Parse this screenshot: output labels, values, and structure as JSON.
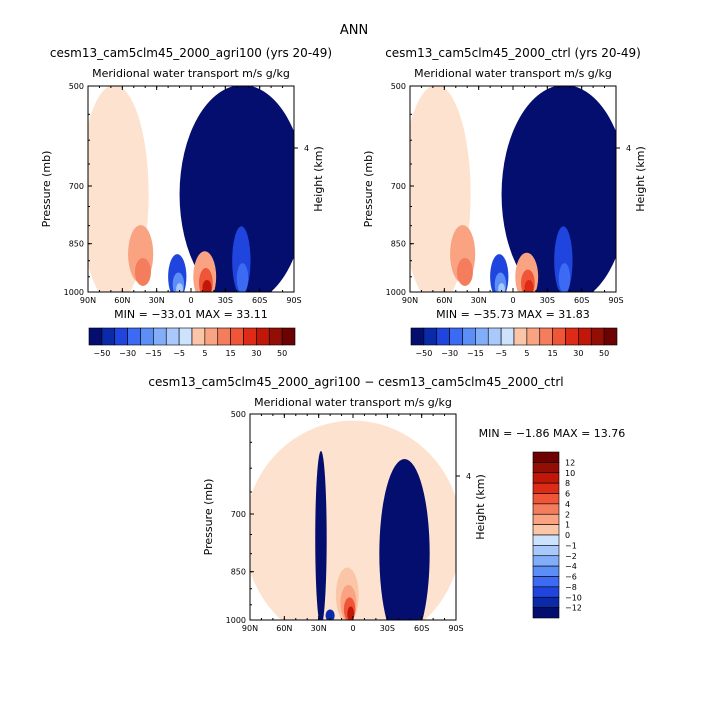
{
  "title": "ANN",
  "colors": {
    "neg": [
      "#040e6e",
      "#0a2aa8",
      "#1f45de",
      "#3d6af3",
      "#5b8ef6",
      "#82adf8",
      "#a9c8fb",
      "#cde2fd"
    ],
    "pos": [
      "#fde3cf",
      "#fbc6a8",
      "#f9a383",
      "#f47d5d",
      "#ef5637",
      "#dd2b17",
      "#c11709",
      "#930f05",
      "#6c0202"
    ]
  },
  "chart_data": [
    {
      "type": "heatmap",
      "name": "agri100",
      "title": "cesm13_cam5clm45_2000_agri100 (yrs 20-49)",
      "subtitle": "Meridional water transport",
      "units": "m/s g/kg",
      "xlabel": "",
      "ylabel": "Pressure (mb)",
      "ylabel_right": "Height (km)",
      "xticks": [
        "90N",
        "60N",
        "30N",
        "0",
        "30S",
        "60S",
        "90S"
      ],
      "yticks": [
        "500",
        "700",
        "850",
        "1000"
      ],
      "right_ticks": [
        "4"
      ],
      "xlim": [
        90,
        -90
      ],
      "ylim": [
        1000,
        500
      ],
      "stats": "MIN = −33.01   MAX =  33.11",
      "colorbar_labels": [
        "−50",
        "−30",
        "−15",
        "−5",
        "5",
        "15",
        "30",
        "50"
      ],
      "colorbar_levels": 16,
      "regions": [
        {
          "kind": "pos",
          "level": 0,
          "lat": 67,
          "p": 720,
          "wlat": 30,
          "wp": 320,
          "sharp": 0
        },
        {
          "kind": "neg",
          "level": 0,
          "lat": -45,
          "p": 720,
          "wlat": 55,
          "wp": 320,
          "sharp": 0
        },
        {
          "kind": "pos",
          "level": 2,
          "lat": 44,
          "p": 880,
          "wlat": 11,
          "wp": 90,
          "sharp": 1
        },
        {
          "kind": "pos",
          "level": 3,
          "lat": 42,
          "p": 935,
          "wlat": 7,
          "wp": 45,
          "sharp": 1
        },
        {
          "kind": "neg",
          "level": 2,
          "lat": 12,
          "p": 950,
          "wlat": 8,
          "wp": 75,
          "sharp": 1
        },
        {
          "kind": "neg",
          "level": 4,
          "lat": 11,
          "p": 975,
          "wlat": 5,
          "wp": 40,
          "sharp": 1
        },
        {
          "kind": "neg",
          "level": 6,
          "lat": 10,
          "p": 990,
          "wlat": 3,
          "wp": 20,
          "sharp": 1
        },
        {
          "kind": "pos",
          "level": 2,
          "lat": -12,
          "p": 950,
          "wlat": 10,
          "wp": 85,
          "sharp": 1
        },
        {
          "kind": "pos",
          "level": 4,
          "lat": -13,
          "p": 970,
          "wlat": 6,
          "wp": 50,
          "sharp": 1
        },
        {
          "kind": "pos",
          "level": 6,
          "lat": -14,
          "p": 985,
          "wlat": 4,
          "wp": 25,
          "sharp": 1
        },
        {
          "kind": "neg",
          "level": 2,
          "lat": -44,
          "p": 900,
          "wlat": 8,
          "wp": 110,
          "sharp": 1
        },
        {
          "kind": "neg",
          "level": 3,
          "lat": -45,
          "p": 955,
          "wlat": 5,
          "wp": 50,
          "sharp": 1
        }
      ]
    },
    {
      "type": "heatmap",
      "name": "ctrl",
      "title": "cesm13_cam5clm45_2000_ctrl (yrs 20-49)",
      "subtitle": "Meridional water transport",
      "units": "m/s g/kg",
      "xlabel": "",
      "ylabel": "Pressure (mb)",
      "ylabel_right": "Height (km)",
      "xticks": [
        "90N",
        "60N",
        "30N",
        "0",
        "30S",
        "60S",
        "90S"
      ],
      "yticks": [
        "500",
        "700",
        "850",
        "1000"
      ],
      "right_ticks": [
        "4"
      ],
      "xlim": [
        90,
        -90
      ],
      "ylim": [
        1000,
        500
      ],
      "stats": "MIN = −35.73   MAX =  31.83",
      "colorbar_labels": [
        "−50",
        "−30",
        "−15",
        "−5",
        "5",
        "15",
        "30",
        "50"
      ],
      "colorbar_levels": 16,
      "regions": [
        {
          "kind": "pos",
          "level": 0,
          "lat": 67,
          "p": 720,
          "wlat": 30,
          "wp": 320,
          "sharp": 0
        },
        {
          "kind": "neg",
          "level": 0,
          "lat": -45,
          "p": 720,
          "wlat": 55,
          "wp": 320,
          "sharp": 0
        },
        {
          "kind": "pos",
          "level": 2,
          "lat": 44,
          "p": 880,
          "wlat": 11,
          "wp": 90,
          "sharp": 1
        },
        {
          "kind": "pos",
          "level": 3,
          "lat": 42,
          "p": 935,
          "wlat": 7,
          "wp": 45,
          "sharp": 1
        },
        {
          "kind": "neg",
          "level": 2,
          "lat": 12,
          "p": 950,
          "wlat": 8,
          "wp": 75,
          "sharp": 1
        },
        {
          "kind": "neg",
          "level": 4,
          "lat": 11,
          "p": 975,
          "wlat": 5,
          "wp": 40,
          "sharp": 1
        },
        {
          "kind": "neg",
          "level": 6,
          "lat": 10,
          "p": 990,
          "wlat": 3,
          "wp": 20,
          "sharp": 1
        },
        {
          "kind": "pos",
          "level": 2,
          "lat": -12,
          "p": 950,
          "wlat": 10,
          "wp": 80,
          "sharp": 1
        },
        {
          "kind": "pos",
          "level": 4,
          "lat": -13,
          "p": 970,
          "wlat": 6,
          "wp": 45,
          "sharp": 1
        },
        {
          "kind": "pos",
          "level": 5,
          "lat": -14,
          "p": 985,
          "wlat": 4,
          "wp": 25,
          "sharp": 1
        },
        {
          "kind": "neg",
          "level": 2,
          "lat": -44,
          "p": 900,
          "wlat": 8,
          "wp": 110,
          "sharp": 1
        },
        {
          "kind": "neg",
          "level": 3,
          "lat": -45,
          "p": 955,
          "wlat": 5,
          "wp": 50,
          "sharp": 1
        }
      ]
    },
    {
      "type": "heatmap",
      "name": "diff",
      "title": "cesm13_cam5clm45_2000_agri100 − cesm13_cam5clm45_2000_ctrl",
      "subtitle": "Meridional water transport",
      "units": "m/s g/kg",
      "xlabel": "",
      "ylabel": "Pressure (mb)",
      "ylabel_right": "Height (km)",
      "xticks": [
        "90N",
        "60N",
        "30N",
        "0",
        "30S",
        "60S",
        "90S"
      ],
      "yticks": [
        "500",
        "700",
        "850",
        "1000"
      ],
      "right_ticks": [
        "4"
      ],
      "xlim": [
        90,
        -90
      ],
      "ylim": [
        1000,
        500
      ],
      "stats": "MIN =  −1.86   MAX =  13.76",
      "colorbar_labels": [
        "12",
        "10",
        "8",
        "6",
        "4",
        "2",
        "1",
        "0",
        "−1",
        "−2",
        "−4",
        "−6",
        "−8",
        "−10",
        "−12"
      ],
      "colorbar_levels": 16,
      "regions": [
        {
          "kind": "pos",
          "level": 0,
          "lat": 0,
          "p": 750,
          "wlat": 95,
          "wp": 350,
          "sharp": 0
        },
        {
          "kind": "neg",
          "level": 0,
          "lat": 28,
          "p": 760,
          "wlat": 5,
          "wp": 260,
          "sharp": 1
        },
        {
          "kind": "neg",
          "level": 0,
          "lat": -45,
          "p": 800,
          "wlat": 22,
          "wp": 300,
          "sharp": 1
        },
        {
          "kind": "pos",
          "level": 1,
          "lat": 5,
          "p": 920,
          "wlat": 10,
          "wp": 90,
          "sharp": 1
        },
        {
          "kind": "pos",
          "level": 2,
          "lat": 4,
          "p": 945,
          "wlat": 7,
          "wp": 60,
          "sharp": 1
        },
        {
          "kind": "pos",
          "level": 4,
          "lat": 3,
          "p": 965,
          "wlat": 5,
          "wp": 40,
          "sharp": 1
        },
        {
          "kind": "pos",
          "level": 6,
          "lat": 2,
          "p": 980,
          "wlat": 3,
          "wp": 25,
          "sharp": 1
        },
        {
          "kind": "neg",
          "level": 1,
          "lat": 20,
          "p": 985,
          "wlat": 4,
          "wp": 20,
          "sharp": 1
        }
      ]
    }
  ]
}
